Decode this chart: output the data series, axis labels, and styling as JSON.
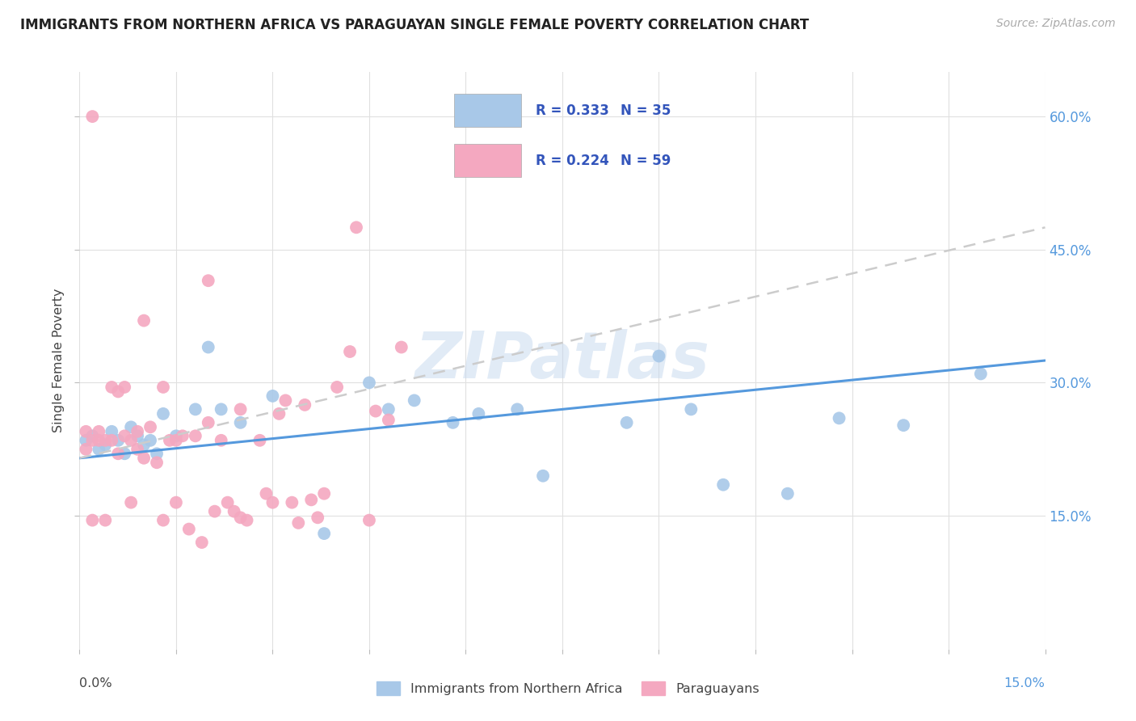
{
  "title": "IMMIGRANTS FROM NORTHERN AFRICA VS PARAGUAYAN SINGLE FEMALE POVERTY CORRELATION CHART",
  "source": "Source: ZipAtlas.com",
  "ylabel": "Single Female Poverty",
  "blue_R": "R = 0.333",
  "blue_N": "N = 35",
  "pink_R": "R = 0.224",
  "pink_N": "N = 59",
  "blue_color": "#a8c8e8",
  "pink_color": "#f4a8c0",
  "blue_line_color": "#5599dd",
  "pink_line_color": "#cccccc",
  "legend_text_color": "#3355bb",
  "watermark": "ZIPatlas",
  "xlim": [
    0.0,
    0.15
  ],
  "ylim": [
    0.0,
    0.65
  ],
  "yticks": [
    0.15,
    0.3,
    0.45,
    0.6
  ],
  "ytick_labels": [
    "15.0%",
    "30.0%",
    "45.0%",
    "60.0%"
  ],
  "blue_line_x": [
    0.0,
    0.15
  ],
  "blue_line_y": [
    0.215,
    0.325
  ],
  "pink_line_x": [
    0.0,
    0.15
  ],
  "pink_line_y": [
    0.215,
    0.475
  ],
  "blue_scatter_x": [
    0.001,
    0.002,
    0.003,
    0.004,
    0.005,
    0.006,
    0.007,
    0.008,
    0.009,
    0.01,
    0.011,
    0.012,
    0.013,
    0.015,
    0.018,
    0.02,
    0.022,
    0.025,
    0.03,
    0.038,
    0.045,
    0.048,
    0.052,
    0.058,
    0.062,
    0.068,
    0.072,
    0.085,
    0.09,
    0.095,
    0.1,
    0.11,
    0.118,
    0.128,
    0.14
  ],
  "blue_scatter_y": [
    0.235,
    0.24,
    0.225,
    0.23,
    0.245,
    0.235,
    0.22,
    0.25,
    0.24,
    0.23,
    0.235,
    0.22,
    0.265,
    0.24,
    0.27,
    0.34,
    0.27,
    0.255,
    0.285,
    0.13,
    0.3,
    0.27,
    0.28,
    0.255,
    0.265,
    0.27,
    0.195,
    0.255,
    0.33,
    0.27,
    0.185,
    0.175,
    0.26,
    0.252,
    0.31
  ],
  "pink_scatter_x": [
    0.001,
    0.001,
    0.002,
    0.002,
    0.003,
    0.003,
    0.004,
    0.004,
    0.005,
    0.005,
    0.006,
    0.006,
    0.007,
    0.007,
    0.008,
    0.008,
    0.009,
    0.009,
    0.01,
    0.01,
    0.011,
    0.012,
    0.013,
    0.013,
    0.014,
    0.015,
    0.015,
    0.016,
    0.017,
    0.018,
    0.019,
    0.02,
    0.02,
    0.021,
    0.022,
    0.023,
    0.024,
    0.025,
    0.025,
    0.026,
    0.028,
    0.029,
    0.03,
    0.031,
    0.032,
    0.033,
    0.034,
    0.035,
    0.036,
    0.037,
    0.038,
    0.04,
    0.042,
    0.043,
    0.045,
    0.046,
    0.048,
    0.05,
    0.002
  ],
  "pink_scatter_y": [
    0.225,
    0.245,
    0.145,
    0.235,
    0.245,
    0.235,
    0.145,
    0.235,
    0.235,
    0.295,
    0.22,
    0.29,
    0.295,
    0.24,
    0.235,
    0.165,
    0.225,
    0.245,
    0.37,
    0.215,
    0.25,
    0.21,
    0.145,
    0.295,
    0.235,
    0.235,
    0.165,
    0.24,
    0.135,
    0.24,
    0.12,
    0.255,
    0.415,
    0.155,
    0.235,
    0.165,
    0.155,
    0.27,
    0.148,
    0.145,
    0.235,
    0.175,
    0.165,
    0.265,
    0.28,
    0.165,
    0.142,
    0.275,
    0.168,
    0.148,
    0.175,
    0.295,
    0.335,
    0.475,
    0.145,
    0.268,
    0.258,
    0.34,
    0.6
  ],
  "background_color": "#ffffff",
  "grid_color": "#e0e0e0"
}
